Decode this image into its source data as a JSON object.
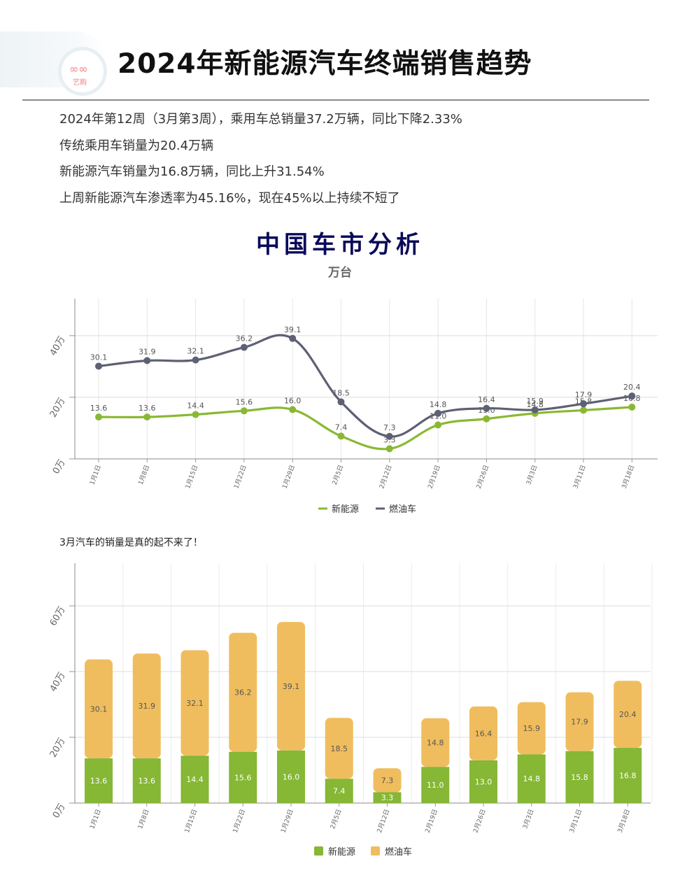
{
  "header": {
    "logo_text": "艺购",
    "title": "2024年新能源汽车终端销售趋势"
  },
  "summary": [
    "2024年第12周（3月第3周），乘用车总销量37.2万辆，同比下降2.33%",
    "传统乘用车销量为20.4万辆",
    "新能源汽车销量为16.8万辆，同比上升31.54%",
    "上周新能源汽车渗透率为45.16%，现在45%以上持续不短了"
  ],
  "chart1_header": {
    "title": "中国车市分析",
    "subtitle": "万台"
  },
  "chart2_header": {
    "note": "3月汽车的销量是真的起不来了！"
  },
  "colors": {
    "nev_line": "#8ab833",
    "ice_line": "#5e6073",
    "nev_bar": "#86b735",
    "ice_bar": "#f0bd5e"
  },
  "chart_data": [
    {
      "type": "line",
      "title": "中国车市分析",
      "subtitle": "万台",
      "x": [
        "1月1日",
        "1月8日",
        "1月15日",
        "1月22日",
        "1月29日",
        "2月5日",
        "2月12日",
        "2月19日",
        "2月26日",
        "3月3日",
        "3月11日",
        "3月18日"
      ],
      "series": [
        {
          "name": "新能源",
          "values": [
            13.6,
            13.6,
            14.4,
            15.6,
            16.0,
            7.4,
            3.3,
            11.0,
            13.0,
            14.8,
            15.8,
            16.8
          ]
        },
        {
          "name": "燃油车",
          "values": [
            30.1,
            31.9,
            32.1,
            36.2,
            39.1,
            18.5,
            7.3,
            14.8,
            16.4,
            15.9,
            17.9,
            20.4
          ]
        }
      ],
      "ylim": [
        0,
        52
      ],
      "yticks": [
        "0万",
        "20万",
        "40万"
      ],
      "grid": true,
      "legend": "bottom-center"
    },
    {
      "type": "bar",
      "stacked": true,
      "categories": [
        "1月1日",
        "1月8日",
        "1月15日",
        "1月22日",
        "1月29日",
        "2月5日",
        "2月12日",
        "2月19日",
        "2月26日",
        "3月3日",
        "3月11日",
        "3月18日"
      ],
      "series": [
        {
          "name": "新能源",
          "values": [
            13.6,
            13.6,
            14.4,
            15.6,
            16.0,
            7.4,
            3.3,
            11.0,
            13.0,
            14.8,
            15.8,
            16.8
          ]
        },
        {
          "name": "燃油车",
          "values": [
            30.1,
            31.9,
            32.1,
            36.2,
            39.1,
            18.5,
            7.3,
            14.8,
            16.4,
            15.9,
            17.9,
            20.4
          ]
        }
      ],
      "ylim": [
        0,
        73
      ],
      "yticks": [
        "0万",
        "20万",
        "40万",
        "60万"
      ],
      "grid": true,
      "legend": "bottom-center"
    }
  ]
}
